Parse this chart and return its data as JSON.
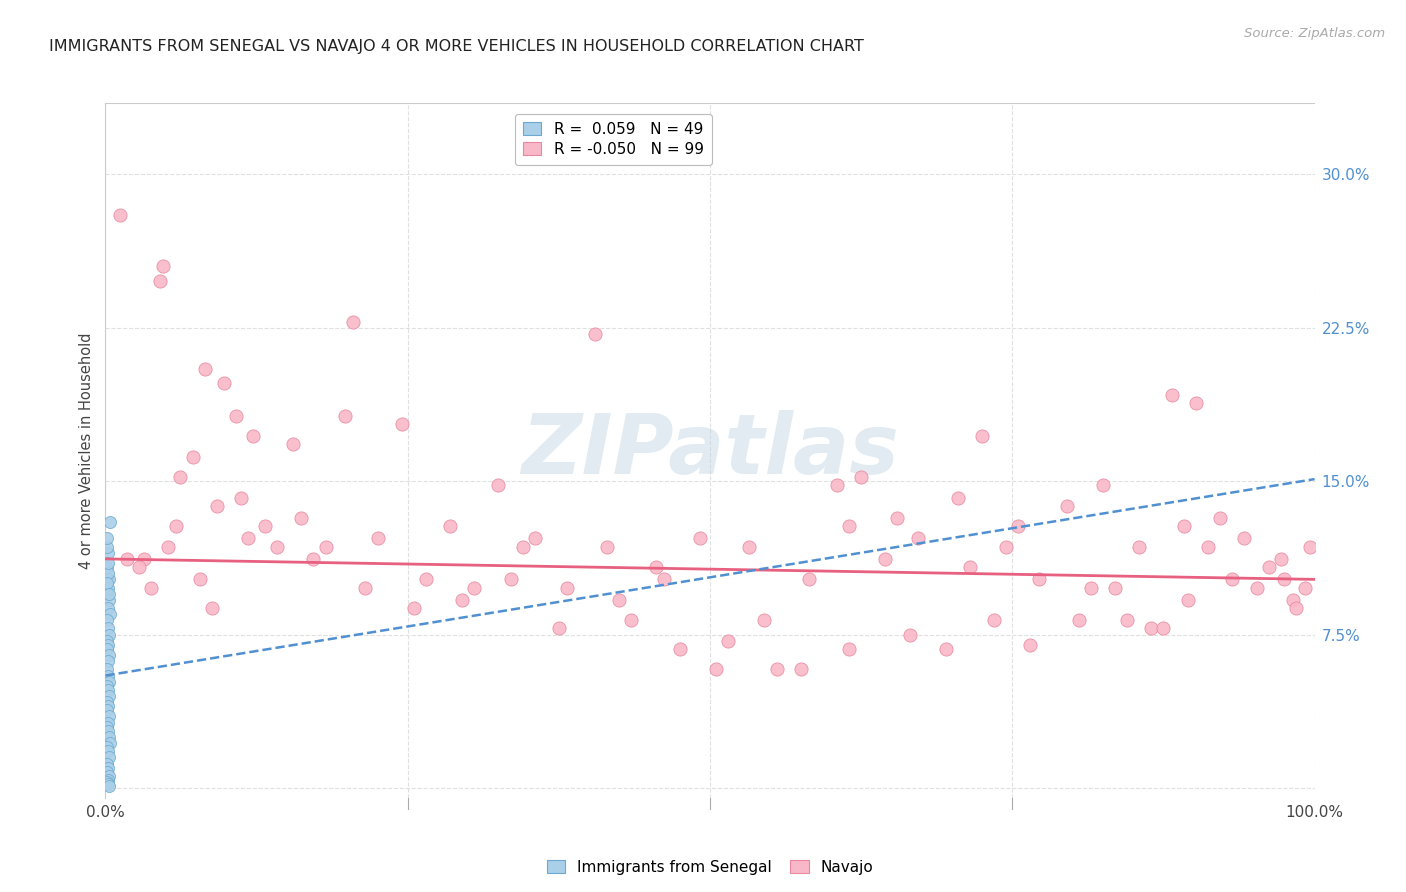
{
  "title": "IMMIGRANTS FROM SENEGAL VS NAVAJO 4 OR MORE VEHICLES IN HOUSEHOLD CORRELATION CHART",
  "source": "Source: ZipAtlas.com",
  "ylabel": "4 or more Vehicles in Household",
  "xlim": [
    0.0,
    1.0
  ],
  "ylim": [
    -0.005,
    0.335
  ],
  "ytick_vals": [
    0.0,
    0.075,
    0.15,
    0.225,
    0.3
  ],
  "ytick_labels": [
    "",
    "7.5%",
    "15.0%",
    "22.5%",
    "30.0%"
  ],
  "xtick_vals": [
    0.0,
    0.25,
    0.5,
    0.75,
    1.0
  ],
  "xtick_labels": [
    "0.0%",
    "",
    "",
    "",
    "100.0%"
  ],
  "watermark": "ZIPatlas",
  "senegal_color": "#aacfe8",
  "navajo_color": "#f9b8c8",
  "senegal_edge": "#6aaad0",
  "navajo_edge": "#e888a0",
  "trend_blue": "#5090d0",
  "trend_pink": "#e86080",
  "grid_color": "#e0e0e0",
  "bg_color": "#ffffff",
  "legend_senegal_label": "R =  0.059   N = 49",
  "legend_navajo_label": "R = -0.050   N = 99",
  "bottom_legend": [
    "Immigrants from Senegal",
    "Navajo"
  ],
  "senegal_trend_x0": 0.0,
  "senegal_trend_y0": 0.055,
  "senegal_trend_x1": 1.0,
  "senegal_trend_y1": 0.151,
  "navajo_trend_x0": 0.0,
  "navajo_trend_y0": 0.112,
  "navajo_trend_x1": 1.0,
  "navajo_trend_y1": 0.102,
  "senegal_points_x": [
    0.002,
    0.001,
    0.003,
    0.002,
    0.001,
    0.003,
    0.002,
    0.004,
    0.001,
    0.002,
    0.003,
    0.001,
    0.002,
    0.001,
    0.003,
    0.002,
    0.001,
    0.002,
    0.003,
    0.001,
    0.002,
    0.003,
    0.001,
    0.002,
    0.001,
    0.003,
    0.002,
    0.001,
    0.002,
    0.003,
    0.004,
    0.001,
    0.002,
    0.003,
    0.001,
    0.002,
    0.001,
    0.003,
    0.002,
    0.001,
    0.002,
    0.003,
    0.001,
    0.002,
    0.001,
    0.003,
    0.002,
    0.001,
    0.004
  ],
  "senegal_points_y": [
    0.115,
    0.108,
    0.102,
    0.098,
    0.095,
    0.092,
    0.088,
    0.085,
    0.082,
    0.078,
    0.075,
    0.072,
    0.07,
    0.068,
    0.065,
    0.062,
    0.058,
    0.055,
    0.052,
    0.05,
    0.048,
    0.045,
    0.042,
    0.04,
    0.038,
    0.035,
    0.032,
    0.03,
    0.028,
    0.025,
    0.022,
    0.02,
    0.018,
    0.015,
    0.012,
    0.01,
    0.008,
    0.006,
    0.004,
    0.003,
    0.002,
    0.001,
    0.118,
    0.105,
    0.1,
    0.095,
    0.11,
    0.122,
    0.13
  ],
  "navajo_points_x": [
    0.012,
    0.048,
    0.045,
    0.082,
    0.098,
    0.122,
    0.108,
    0.155,
    0.205,
    0.198,
    0.245,
    0.285,
    0.325,
    0.355,
    0.405,
    0.415,
    0.455,
    0.492,
    0.555,
    0.532,
    0.605,
    0.625,
    0.655,
    0.705,
    0.725,
    0.755,
    0.795,
    0.825,
    0.855,
    0.882,
    0.902,
    0.922,
    0.942,
    0.962,
    0.972,
    0.982,
    0.992,
    0.996,
    0.052,
    0.032,
    0.072,
    0.062,
    0.092,
    0.112,
    0.132,
    0.162,
    0.182,
    0.225,
    0.265,
    0.305,
    0.345,
    0.382,
    0.425,
    0.462,
    0.505,
    0.545,
    0.582,
    0.615,
    0.645,
    0.672,
    0.715,
    0.745,
    0.772,
    0.805,
    0.835,
    0.865,
    0.892,
    0.912,
    0.932,
    0.952,
    0.018,
    0.028,
    0.038,
    0.058,
    0.078,
    0.088,
    0.118,
    0.142,
    0.172,
    0.215,
    0.255,
    0.295,
    0.335,
    0.375,
    0.435,
    0.475,
    0.515,
    0.575,
    0.615,
    0.665,
    0.695,
    0.735,
    0.765,
    0.815,
    0.845,
    0.875,
    0.895,
    0.985,
    0.975
  ],
  "navajo_points_y": [
    0.28,
    0.255,
    0.248,
    0.205,
    0.198,
    0.172,
    0.182,
    0.168,
    0.228,
    0.182,
    0.178,
    0.128,
    0.148,
    0.122,
    0.222,
    0.118,
    0.108,
    0.122,
    0.058,
    0.118,
    0.148,
    0.152,
    0.132,
    0.142,
    0.172,
    0.128,
    0.138,
    0.148,
    0.118,
    0.192,
    0.188,
    0.132,
    0.122,
    0.108,
    0.112,
    0.092,
    0.098,
    0.118,
    0.118,
    0.112,
    0.162,
    0.152,
    0.138,
    0.142,
    0.128,
    0.132,
    0.118,
    0.122,
    0.102,
    0.098,
    0.118,
    0.098,
    0.092,
    0.102,
    0.058,
    0.082,
    0.102,
    0.128,
    0.112,
    0.122,
    0.108,
    0.118,
    0.102,
    0.082,
    0.098,
    0.078,
    0.128,
    0.118,
    0.102,
    0.098,
    0.112,
    0.108,
    0.098,
    0.128,
    0.102,
    0.088,
    0.122,
    0.118,
    0.112,
    0.098,
    0.088,
    0.092,
    0.102,
    0.078,
    0.082,
    0.068,
    0.072,
    0.058,
    0.068,
    0.075,
    0.068,
    0.082,
    0.07,
    0.098,
    0.082,
    0.078,
    0.092,
    0.088,
    0.102
  ]
}
